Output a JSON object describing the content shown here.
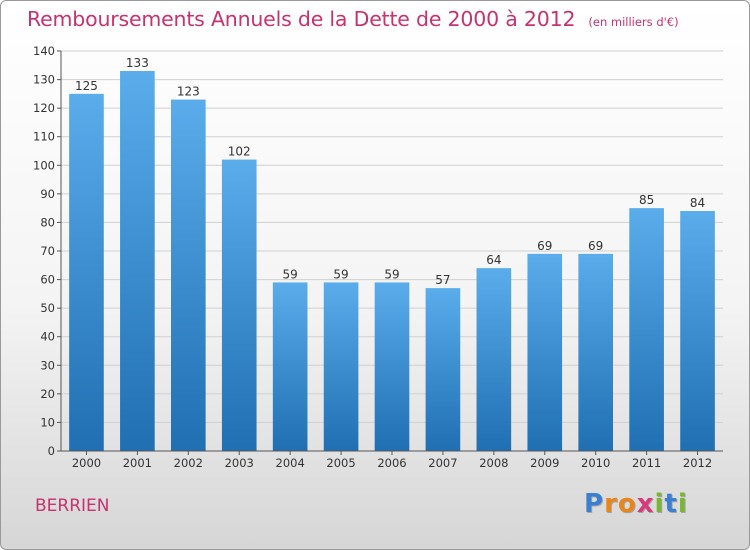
{
  "chart_data": {
    "type": "bar",
    "title": "Remboursements Annuels de la Dette de 2000 à 2012",
    "subtitle": "(en milliers d'€)",
    "categories": [
      "2000",
      "2001",
      "2002",
      "2003",
      "2004",
      "2005",
      "2006",
      "2007",
      "2008",
      "2009",
      "2010",
      "2011",
      "2012"
    ],
    "values": [
      125,
      133,
      123,
      102,
      59,
      59,
      59,
      57,
      64,
      69,
      69,
      85,
      84
    ],
    "ylim": [
      0,
      140
    ],
    "yticks": [
      0,
      10,
      20,
      30,
      40,
      50,
      60,
      70,
      80,
      90,
      100,
      110,
      120,
      130,
      140
    ],
    "grid": true,
    "legend": "none",
    "bar_color_top": "#5aaceb",
    "bar_color_bottom": "#1f6fb2"
  },
  "footer": {
    "commune": "BERRIEN",
    "logo_letters": [
      "P",
      "r",
      "o",
      "x",
      "i",
      "t",
      "i"
    ],
    "logo_colors": [
      "#3a7fd0",
      "#e8861a",
      "#e8861a",
      "#d63a7a",
      "#7ab536",
      "#3a7fd0",
      "#7ab536"
    ]
  }
}
